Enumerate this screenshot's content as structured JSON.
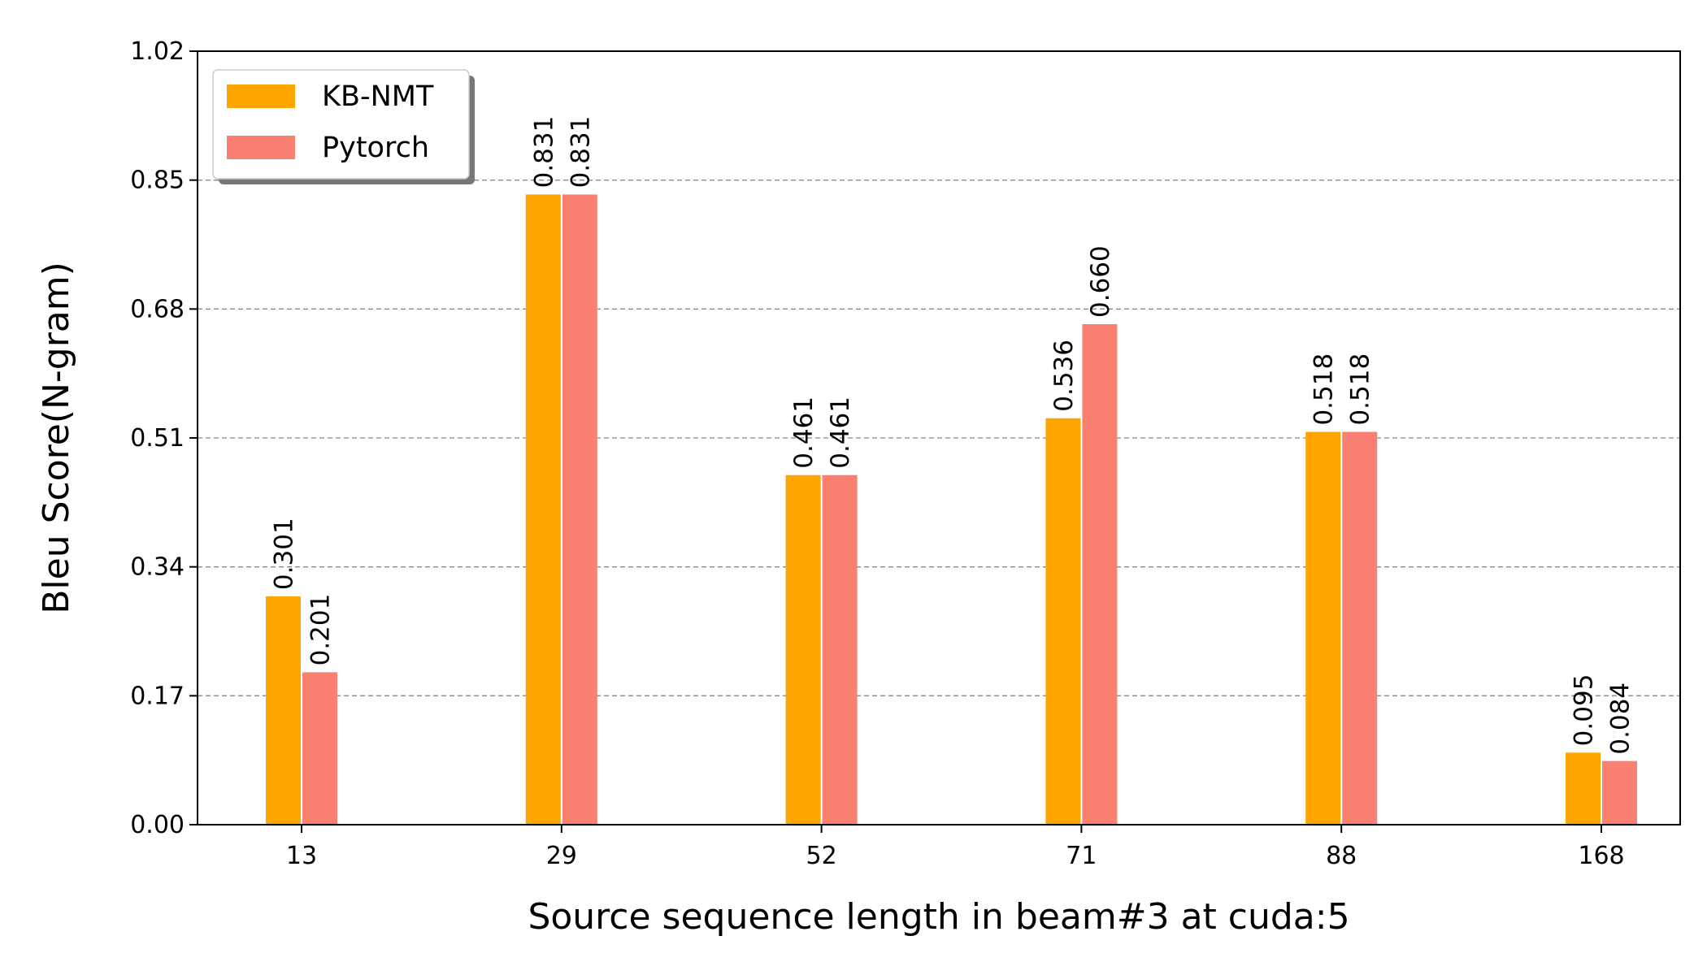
{
  "chart_data": {
    "type": "bar",
    "title": "",
    "xlabel": "Source sequence length in beam#3 at cuda:5",
    "ylabel": "Bleu Score(N-gram)",
    "categories": [
      "13",
      "29",
      "52",
      "71",
      "88",
      "168"
    ],
    "series": [
      {
        "name": "KB-NMT",
        "color": "#FFA500",
        "values": [
          0.301,
          0.831,
          0.461,
          0.536,
          0.518,
          0.095
        ],
        "labels": [
          "0.301",
          "0.831",
          "0.461",
          "0.536",
          "0.518",
          "0.095"
        ]
      },
      {
        "name": "Pytorch",
        "color": "#FA8072",
        "values": [
          0.201,
          0.831,
          0.461,
          0.66,
          0.518,
          0.084
        ],
        "labels": [
          "0.201",
          "0.831",
          "0.461",
          "0.660",
          "0.518",
          "0.084"
        ]
      }
    ],
    "ylim": [
      0,
      1.02
    ],
    "yticks": [
      "0.00",
      "0.17",
      "0.34",
      "0.51",
      "0.68",
      "0.85",
      "1.02"
    ],
    "grid": "horizontal dashed",
    "legend_position": "top-left"
  }
}
